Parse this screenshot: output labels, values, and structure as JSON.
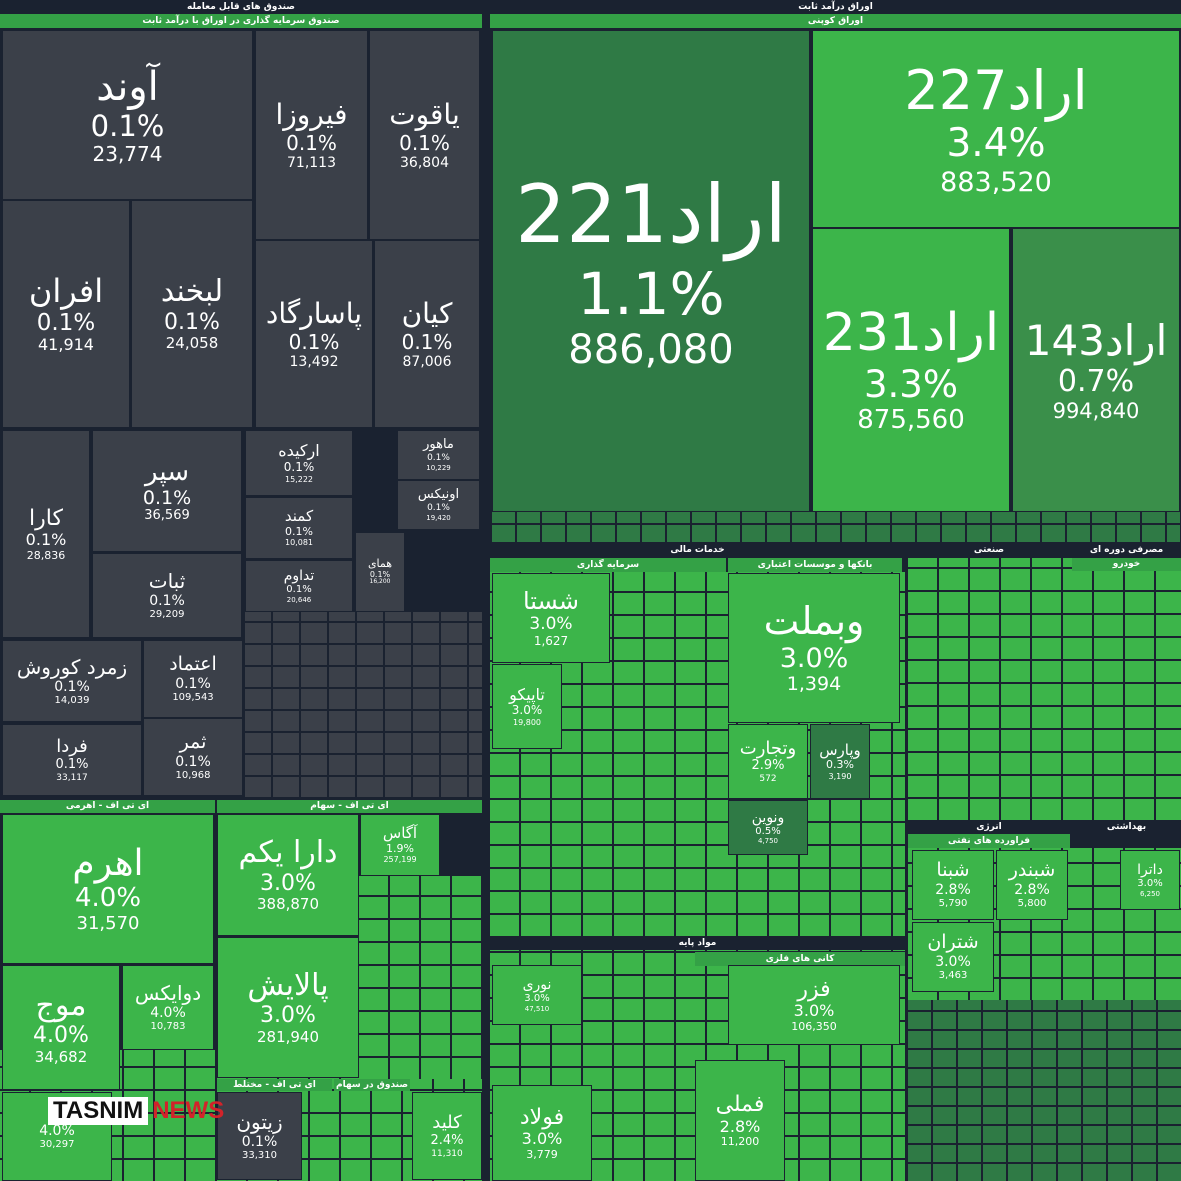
{
  "headers": [
    "صندوق های قابل معامله",
    "صندوق سرمایه گذاری در اوراق با درآمد ثابت",
    "اوراق درآمد ثابت",
    "اوراق کوپنی",
    "ای تی اف - اهرمی",
    "ای تی اف - سهام",
    "ای تی اف - مختلط",
    "صندوق در سهام",
    "خدمات مالی",
    "سرمایه گذاری",
    "بانکها و موسسات اعتباری",
    "مواد پایه",
    "کانی های فلزی",
    "صنعتی",
    "مصرفی دوره ای",
    "خودرو",
    "انرژی",
    "فراورده های نفتی",
    "بهداشتی"
  ],
  "tiles": [
    {
      "name": "آوند",
      "change": "0.1%",
      "volume": "23,774"
    },
    {
      "name": "فیروزا",
      "change": "0.1%",
      "volume": "71,113"
    },
    {
      "name": "یاقوت",
      "change": "0.1%",
      "volume": "36,804"
    },
    {
      "name": "افران",
      "change": "0.1%",
      "volume": "41,914"
    },
    {
      "name": "لبخند",
      "change": "0.1%",
      "volume": "24,058"
    },
    {
      "name": "پاسارگاد",
      "change": "0.1%",
      "volume": "13,492"
    },
    {
      "name": "کیان",
      "change": "0.1%",
      "volume": "87,006"
    },
    {
      "name": "کارا",
      "change": "0.1%",
      "volume": "28,836"
    },
    {
      "name": "سپر",
      "change": "0.1%",
      "volume": "36,569"
    },
    {
      "name": "ثبات",
      "change": "0.1%",
      "volume": "29,209"
    },
    {
      "name": "اركيده",
      "change": "0.1%",
      "volume": "15,222"
    },
    {
      "name": "کمند",
      "change": "0.1%",
      "volume": "10,081"
    },
    {
      "name": "تداوم",
      "change": "0.1%",
      "volume": "20,646"
    },
    {
      "name": "ماهور",
      "change": "0.1%",
      "volume": "10,229"
    },
    {
      "name": "اونیکس",
      "change": "0.1%",
      "volume": "19,420"
    },
    {
      "name": "همای",
      "change": "0.1%",
      "volume": "16,200"
    },
    {
      "name": "زمرد کوروش",
      "change": "0.1%",
      "volume": "14,039"
    },
    {
      "name": "اعتماد",
      "change": "0.1%",
      "volume": "109,543"
    },
    {
      "name": "فردا",
      "change": "0.1%",
      "volume": "33,117"
    },
    {
      "name": "ثمر",
      "change": "0.1%",
      "volume": "10,968"
    },
    {
      "name": "اراد221",
      "change": "1.1%",
      "volume": "886,080"
    },
    {
      "name": "اراد227",
      "change": "3.4%",
      "volume": "883,520"
    },
    {
      "name": "اراد231",
      "change": "3.3%",
      "volume": "875,560"
    },
    {
      "name": "اراد143",
      "change": "0.7%",
      "volume": "994,840"
    },
    {
      "name": "اهرم",
      "change": "4.0%",
      "volume": "31,570"
    },
    {
      "name": "موج",
      "change": "4.0%",
      "volume": "34,682"
    },
    {
      "name": "دوایکس",
      "change": "4.0%",
      "volume": "10,783"
    },
    {
      "name": "دارا یکم",
      "change": "3.0%",
      "volume": "388,870"
    },
    {
      "name": "آگاس",
      "change": "1.9%",
      "volume": "257,199"
    },
    {
      "name": "پالایش",
      "change": "3.0%",
      "volume": "281,940"
    },
    {
      "name": "زیتون",
      "change": "0.1%",
      "volume": "33,310"
    },
    {
      "name": "کلید",
      "change": "2.4%",
      "volume": "11,310"
    },
    {
      "name": "شستا",
      "change": "3.0%",
      "volume": "1,627"
    },
    {
      "name": "وبملت",
      "change": "3.0%",
      "volume": "1,394"
    },
    {
      "name": "تاپیکو",
      "change": "3.0%",
      "volume": "19,800"
    },
    {
      "name": "وتجارت",
      "change": "2.9%",
      "volume": "572"
    },
    {
      "name": "وپارس",
      "change": "0.3%",
      "volume": "3,190"
    },
    {
      "name": "ونوین",
      "change": "0.5%",
      "volume": "4,750"
    },
    {
      "name": "نوری",
      "change": "3.0%",
      "volume": "47,510"
    },
    {
      "name": "فزر",
      "change": "3.0%",
      "volume": "106,350"
    },
    {
      "name": "فولاد",
      "change": "3.0%",
      "volume": "3,779"
    },
    {
      "name": "فملی",
      "change": "2.8%",
      "volume": "11,200"
    },
    {
      "name": "شبنا",
      "change": "2.8%",
      "volume": "5,790"
    },
    {
      "name": "شبندر",
      "change": "2.8%",
      "volume": "5,800"
    },
    {
      "name": "شتران",
      "change": "3.0%",
      "volume": "3,463"
    },
    {
      "name": "داترا",
      "change": "3.0%",
      "volume": "6,250"
    },
    {
      "change": "4.0%",
      "volume": "30,297"
    }
  ],
  "watermark": {
    "brand": "TASNIM",
    "suffix": "NEWS"
  }
}
